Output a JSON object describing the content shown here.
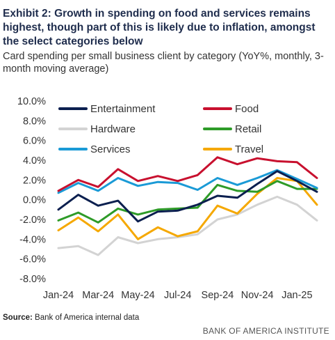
{
  "header": {
    "title": "Exhibit 2: Growth in spending on food and services remains highest, though part of this is likely due to inflation, amongst the select categories below",
    "subtitle": "Card spending per small business client by category (YoY%, monthly, 3-month moving average)"
  },
  "footer": {
    "source_label": "Source:",
    "source_text": "Bank of America internal data",
    "brand": "BANK OF AMERICA INSTITUTE"
  },
  "chart_data": {
    "type": "line",
    "x": [
      "Jan-24",
      "Feb-24",
      "Mar-24",
      "Apr-24",
      "May-24",
      "Jun-24",
      "Jul-24",
      "Aug-24",
      "Sep-24",
      "Oct-24",
      "Nov-24",
      "Dec-24",
      "Jan-25",
      "Feb-25"
    ],
    "x_tick_labels": [
      "Jan-24",
      "Mar-24",
      "May-24",
      "Jul-24",
      "Sep-24",
      "Nov-24",
      "Jan-25"
    ],
    "x_tick_indices": [
      0,
      2,
      4,
      6,
      8,
      10,
      12
    ],
    "ylim": [
      -8,
      10
    ],
    "y_ticks": [
      10,
      8,
      6,
      4,
      2,
      0,
      -2,
      -4,
      -6,
      -8
    ],
    "y_tick_labels": [
      "10.0%",
      "8.0%",
      "6.0%",
      "4.0%",
      "2.0%",
      "0.0%",
      "-2.0%",
      "-4.0%",
      "-6.0%",
      "-8.0%"
    ],
    "grid": false,
    "legend": "top, two columns",
    "series": [
      {
        "name": "Entertainment",
        "color": "#0b1f4f",
        "values": [
          -1.0,
          0.5,
          -0.6,
          -0.1,
          -2.2,
          -1.2,
          -1.1,
          -0.5,
          0.4,
          0.2,
          1.6,
          2.9,
          1.9,
          0.8
        ]
      },
      {
        "name": "Food",
        "color": "#c8102e",
        "values": [
          0.9,
          2.0,
          1.3,
          3.1,
          1.9,
          2.4,
          1.9,
          2.5,
          4.3,
          3.6,
          4.2,
          3.9,
          3.8,
          2.2
        ]
      },
      {
        "name": "Hardware",
        "color": "#d3d3d3",
        "values": [
          -4.9,
          -4.7,
          -5.6,
          -3.8,
          -4.4,
          -4.0,
          -3.8,
          -3.5,
          -2.0,
          -1.5,
          -0.5,
          0.3,
          -0.5,
          -2.1
        ]
      },
      {
        "name": "Retail",
        "color": "#2e9b28",
        "values": [
          -2.1,
          -1.3,
          -2.3,
          -0.9,
          -1.5,
          -1.0,
          -0.9,
          -0.8,
          1.5,
          0.9,
          0.8,
          1.9,
          1.1,
          1.1
        ]
      },
      {
        "name": "Services",
        "color": "#1a9ad6",
        "values": [
          0.7,
          1.7,
          0.9,
          2.2,
          1.4,
          1.8,
          1.7,
          1.0,
          2.2,
          1.5,
          2.2,
          3.0,
          2.1,
          1.2
        ]
      },
      {
        "name": "Travel",
        "color": "#f5a800",
        "values": [
          -3.1,
          -1.8,
          -3.2,
          -1.5,
          -4.0,
          -2.8,
          -3.7,
          -3.2,
          -0.6,
          -1.4,
          0.6,
          2.2,
          1.9,
          -0.5
        ]
      }
    ]
  }
}
